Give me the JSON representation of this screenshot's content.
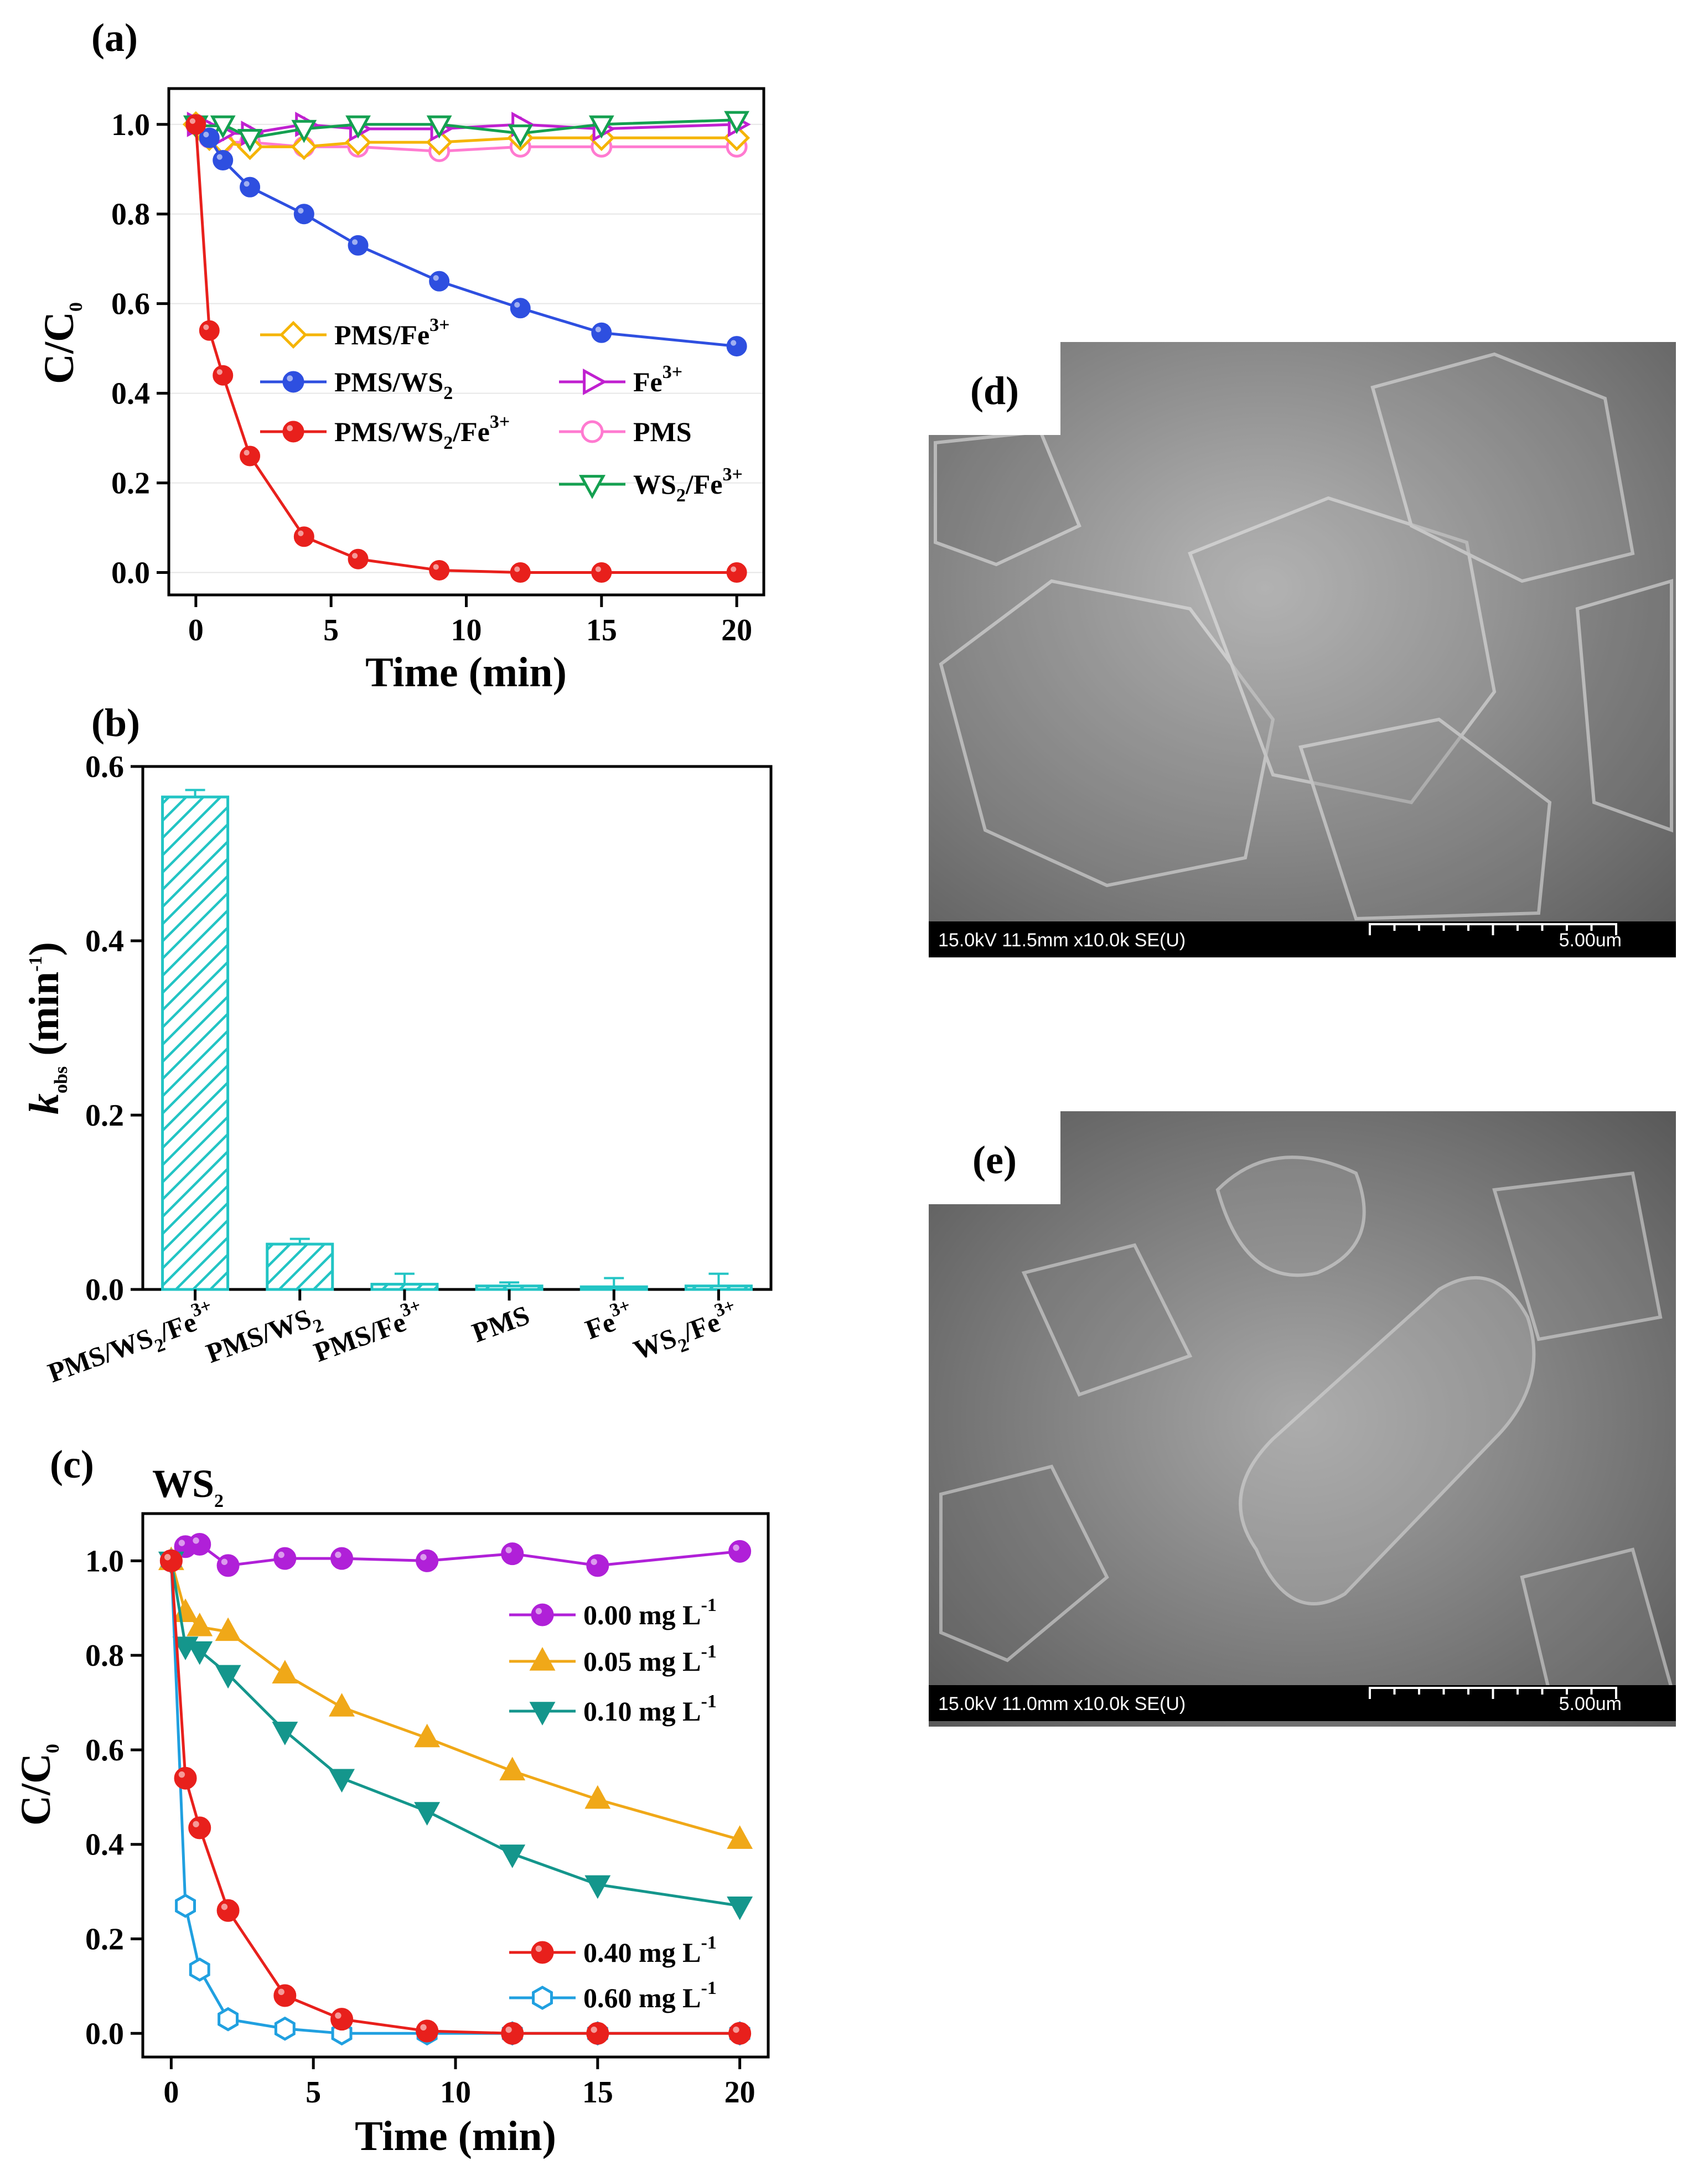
{
  "chart_data": [
    {
      "id": "a",
      "panel_label": "(a)",
      "type": "line",
      "xlabel": "Time (min)",
      "ylabel": "C/C0",
      "xlim": [
        -1,
        21
      ],
      "ylim": [
        -0.05,
        1.08
      ],
      "xticks": [
        0,
        5,
        10,
        15,
        20
      ],
      "xtick_labels": [
        "0",
        "5",
        "10",
        "15",
        "20"
      ],
      "yticks": [
        0.0,
        0.2,
        0.4,
        0.6,
        0.8,
        1.0
      ],
      "ytick_labels": [
        "0.0",
        "0.2",
        "0.4",
        "0.6",
        "0.8",
        "1.0"
      ],
      "series": [
        {
          "name": "PMS/Fe3+",
          "label": "PMS/Fe",
          "sup": "3+",
          "color": "#f5b400",
          "marker": "diamond-open",
          "x": [
            0,
            0.5,
            1,
            2,
            4,
            6,
            9,
            12,
            15,
            20
          ],
          "y": [
            1.0,
            0.97,
            0.96,
            0.95,
            0.95,
            0.96,
            0.96,
            0.97,
            0.97,
            0.97
          ]
        },
        {
          "name": "PMS/WS2",
          "label": "PMS/WS",
          "subtext": "2",
          "color": "#2e4fe0",
          "marker": "circle",
          "x": [
            0,
            0.5,
            1,
            2,
            4,
            6,
            9,
            12,
            15,
            20
          ],
          "y": [
            1.0,
            0.97,
            0.92,
            0.86,
            0.8,
            0.73,
            0.65,
            0.59,
            0.535,
            0.505
          ]
        },
        {
          "name": "PMS/WS2/Fe3+",
          "label": "PMS/WS",
          "subtext": "2",
          "label2": "/Fe",
          "sup": "3+",
          "color": "#e8201c",
          "marker": "circle",
          "x": [
            0,
            0.5,
            1,
            2,
            4,
            6,
            9,
            12,
            15,
            20
          ],
          "y": [
            1.0,
            0.54,
            0.44,
            0.26,
            0.08,
            0.03,
            0.005,
            0.0,
            0.0,
            0.0
          ]
        },
        {
          "name": "Fe3+",
          "label": "Fe",
          "sup": "3+",
          "color": "#c020d0",
          "marker": "triangle-right-open",
          "x": [
            0,
            0.5,
            1,
            2,
            4,
            6,
            9,
            12,
            15,
            20
          ],
          "y": [
            1.0,
            0.99,
            0.98,
            0.98,
            1.0,
            0.99,
            0.99,
            1.0,
            0.99,
            1.0
          ]
        },
        {
          "name": "PMS",
          "label": "PMS",
          "color": "#ff7ad0",
          "marker": "circle-open",
          "x": [
            0,
            0.5,
            1,
            2,
            4,
            6,
            9,
            12,
            15,
            20
          ],
          "y": [
            1.0,
            0.97,
            0.96,
            0.96,
            0.95,
            0.95,
            0.94,
            0.95,
            0.95,
            0.95
          ]
        },
        {
          "name": "WS2/Fe3+",
          "label": "WS",
          "subtext": "2",
          "label2": "/Fe",
          "sup": "3+",
          "color": "#14a050",
          "marker": "triangle-down-open",
          "x": [
            0,
            0.5,
            1,
            2,
            4,
            6,
            9,
            12,
            15,
            20
          ],
          "y": [
            1.0,
            0.98,
            1.0,
            0.97,
            0.99,
            1.0,
            1.0,
            0.98,
            1.0,
            1.01
          ]
        }
      ]
    },
    {
      "id": "b",
      "panel_label": "(b)",
      "type": "bar",
      "ylabel": "k_obs (min-1)",
      "ylabel_parts": {
        "k": "k",
        "sub": "obs",
        "unit": " (min",
        "sup": "-1",
        "close": ")"
      },
      "ylim": [
        0,
        0.6
      ],
      "yticks": [
        0.0,
        0.2,
        0.4,
        0.6
      ],
      "ytick_labels": [
        "0.0",
        "0.2",
        "0.4",
        "0.6"
      ],
      "categories": [
        "PMS/WS2/Fe3+",
        "PMS/WS2",
        "PMS/Fe3+",
        "PMS",
        "Fe3+",
        "WS2/Fe3+"
      ],
      "category_labels": [
        {
          "a": "PMS/WS",
          "s": "2",
          "b": "/Fe",
          "p": "3+"
        },
        {
          "a": "PMS/WS",
          "s": "2",
          "b": "",
          "p": ""
        },
        {
          "a": "PMS/Fe",
          "s": "",
          "b": "",
          "p": "3+"
        },
        {
          "a": "PMS",
          "s": "",
          "b": "",
          "p": ""
        },
        {
          "a": "Fe",
          "s": "",
          "b": "",
          "p": "3+"
        },
        {
          "a": "WS",
          "s": "2",
          "b": "/Fe",
          "p": "3+"
        }
      ],
      "values": [
        0.565,
        0.052,
        0.006,
        0.004,
        0.003,
        0.004
      ],
      "errors": [
        0.008,
        0.006,
        0.012,
        0.004,
        0.01,
        0.014
      ],
      "color": "#22c4c4"
    },
    {
      "id": "c",
      "panel_label": "(c)",
      "title": "WS",
      "title_sub": "2",
      "type": "line",
      "xlabel": "Time (min)",
      "ylabel": "C/C0",
      "xlim": [
        -1,
        21
      ],
      "ylim": [
        -0.05,
        1.1
      ],
      "xticks": [
        0,
        5,
        10,
        15,
        20
      ],
      "xtick_labels": [
        "0",
        "5",
        "10",
        "15",
        "20"
      ],
      "yticks": [
        0.0,
        0.2,
        0.4,
        0.6,
        0.8,
        1.0
      ],
      "ytick_labels": [
        "0.0",
        "0.2",
        "0.4",
        "0.6",
        "0.8",
        "1.0"
      ],
      "series": [
        {
          "name": "0.00 mg L-1",
          "label": "0.00 mg L",
          "sup": "-1",
          "color": "#b020d8",
          "marker": "circle",
          "x": [
            0,
            0.5,
            1,
            2,
            4,
            6,
            9,
            12,
            15,
            20
          ],
          "y": [
            1.0,
            1.03,
            1.035,
            0.99,
            1.005,
            1.005,
            1.0,
            1.015,
            0.99,
            1.02
          ]
        },
        {
          "name": "0.05 mg L-1",
          "label": "0.05 mg L",
          "sup": "-1",
          "color": "#f0a818",
          "marker": "triangle-up",
          "x": [
            0,
            0.5,
            1,
            2,
            4,
            6,
            9,
            12,
            15,
            20
          ],
          "y": [
            1.0,
            0.89,
            0.86,
            0.85,
            0.76,
            0.69,
            0.625,
            0.555,
            0.495,
            0.41
          ]
        },
        {
          "name": "0.10 mg L-1",
          "label": "0.10 mg L",
          "sup": "-1",
          "color": "#14968c",
          "marker": "triangle-down",
          "x": [
            0,
            0.5,
            1,
            2,
            4,
            6,
            9,
            12,
            15,
            20
          ],
          "y": [
            1.0,
            0.82,
            0.81,
            0.76,
            0.64,
            0.54,
            0.47,
            0.38,
            0.315,
            0.27
          ]
        },
        {
          "name": "0.40 mg L-1",
          "label": "0.40 mg L",
          "sup": "-1",
          "color": "#e8201c",
          "marker": "circle",
          "x": [
            0,
            0.5,
            1,
            2,
            4,
            6,
            9,
            12,
            15,
            20
          ],
          "y": [
            1.0,
            0.54,
            0.435,
            0.26,
            0.08,
            0.03,
            0.005,
            0.0,
            0.0,
            0.0
          ]
        },
        {
          "name": "0.60 mg L-1",
          "label": "0.60 mg L",
          "sup": "-1",
          "color": "#20a0e0",
          "marker": "hexagon-open",
          "x": [
            0,
            0.5,
            1,
            2,
            4,
            6,
            9,
            12,
            15,
            20
          ],
          "y": [
            1.0,
            0.27,
            0.135,
            0.03,
            0.01,
            0.0,
            0.0,
            0.0,
            0.0,
            0.0
          ]
        }
      ]
    }
  ],
  "sem_images": [
    {
      "label": "(d)",
      "caption_left": "15.0kV 11.5mm x10.0k SE(U)",
      "caption_right": "5.00um"
    },
    {
      "label": "(e)",
      "caption_left": "15.0kV 11.0mm x10.0k SE(U)",
      "caption_right": "5.00um"
    }
  ]
}
